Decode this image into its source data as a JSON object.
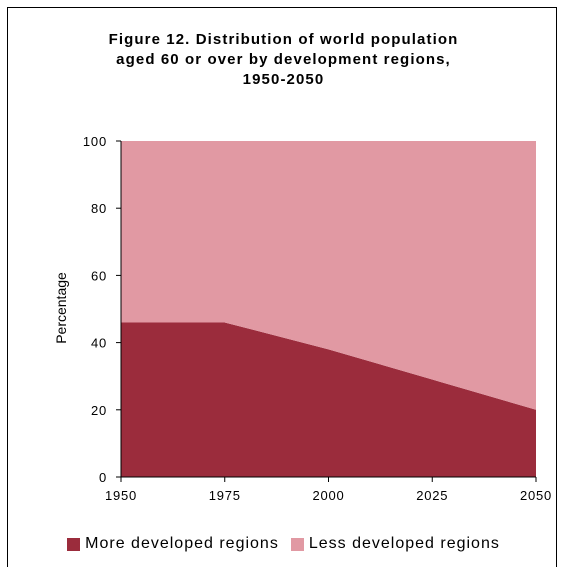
{
  "colors": {
    "more_developed": "#9b2c3c",
    "less_developed": "#e199a3"
  },
  "chart_data": {
    "type": "area",
    "stacked": true,
    "title_lines": [
      "Figure 12.  Distribution of world population",
      "aged 60 or over by development regions,",
      "1950-2050"
    ],
    "xlabel": "",
    "ylabel": "Percentage",
    "x": [
      1950,
      1975,
      2000,
      2025,
      2050
    ],
    "x_ticks": [
      "1950",
      "1975",
      "2000",
      "2025",
      "2050"
    ],
    "y_ticks": [
      "0",
      "20",
      "40",
      "60",
      "80",
      "100"
    ],
    "ylim": [
      0,
      100
    ],
    "series": [
      {
        "name": "More developed regions",
        "values": [
          46,
          46,
          38,
          29,
          20
        ]
      },
      {
        "name": "Less developed regions",
        "values": [
          54,
          54,
          62,
          71,
          80
        ]
      }
    ],
    "legend_position": "bottom",
    "grid": false
  }
}
